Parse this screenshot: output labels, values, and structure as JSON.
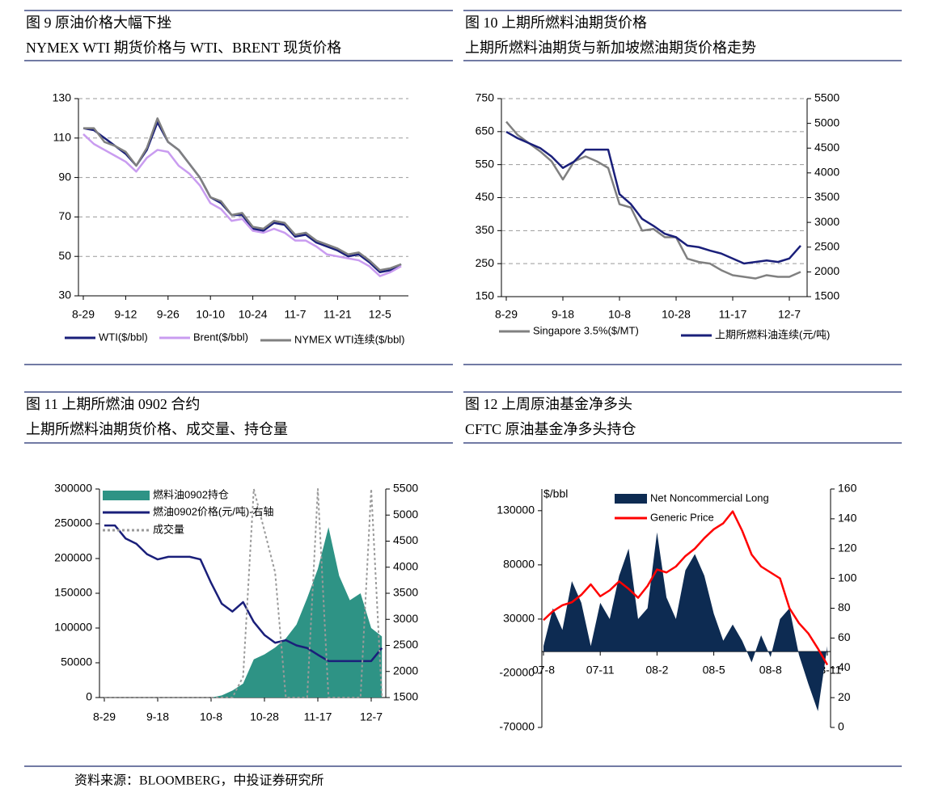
{
  "chart_data": [
    {
      "type": "line",
      "title": "图 9  原油价格大幅下挫",
      "subtitle": "NYMEX WTI 期货价格与 WTI、BRENT 现货价格",
      "categories": [
        "8-29",
        null,
        null,
        null,
        "9-12",
        null,
        null,
        null,
        "9-26",
        null,
        null,
        null,
        "10-10",
        null,
        null,
        null,
        "10-24",
        null,
        null,
        null,
        "11-7",
        null,
        null,
        null,
        "11-21",
        null,
        null,
        null,
        "12-5",
        null,
        null
      ],
      "ylim": [
        30,
        130
      ],
      "yticks": [
        30,
        50,
        70,
        90,
        110,
        130
      ],
      "grid": true,
      "legend": "bottom",
      "series": [
        {
          "name": "WTI($/bbl)",
          "color": "#1a1f7a",
          "values": [
            115,
            114,
            110,
            106,
            102,
            96,
            104,
            118,
            108,
            104,
            97,
            90,
            80,
            77,
            71,
            71,
            64,
            63,
            67,
            66,
            60,
            61,
            57,
            55,
            53,
            50,
            51,
            47,
            42,
            43,
            46
          ]
        },
        {
          "name": "Brent($/bbl)",
          "color": "#c99cf0",
          "values": [
            112,
            107,
            104,
            101,
            98,
            93,
            100,
            104,
            103,
            96,
            92,
            86,
            77,
            74,
            68,
            69,
            63,
            62,
            64,
            62,
            58,
            58,
            55,
            51,
            50,
            49,
            48,
            45,
            40,
            42,
            45
          ]
        },
        {
          "name": "NYMEX WTI连续($/bbl)",
          "color": "#808080",
          "values": [
            115,
            115,
            108,
            106,
            103,
            96,
            105,
            120,
            108,
            104,
            97,
            90,
            80,
            78,
            71,
            72,
            65,
            64,
            68,
            67,
            61,
            62,
            58,
            56,
            54,
            51,
            52,
            48,
            43,
            44,
            46
          ]
        }
      ]
    },
    {
      "type": "line",
      "title": "图 10  上期所燃料油期货价格",
      "subtitle": "上期所燃料油期货与新加坡燃油期货价格走势",
      "categories": [
        "8-29",
        null,
        null,
        null,
        null,
        "9-18",
        null,
        null,
        null,
        null,
        "10-8",
        null,
        null,
        null,
        null,
        "10-28",
        null,
        null,
        null,
        null,
        "11-17",
        null,
        null,
        null,
        null,
        "12-7",
        null
      ],
      "ylim": [
        150,
        750
      ],
      "yticks": [
        150,
        250,
        350,
        450,
        550,
        650,
        750
      ],
      "y2lim": [
        1500,
        5500
      ],
      "y2ticks": [
        1500,
        2000,
        2500,
        3000,
        3500,
        4000,
        4500,
        5000,
        5500
      ],
      "grid": true,
      "legend": "bottom",
      "series": [
        {
          "name": "Singapore 3.5%($/MT)",
          "color": "#808080",
          "values": [
            680,
            640,
            615,
            590,
            560,
            505,
            560,
            575,
            560,
            540,
            430,
            420,
            350,
            355,
            330,
            330,
            265,
            255,
            250,
            230,
            215,
            210,
            205,
            215,
            210,
            210,
            225
          ]
        },
        {
          "name": "上期所燃料油连续(元/吨)",
          "color": "#1a1f7a",
          "axis": "y2",
          "values": [
            4830,
            4700,
            4600,
            4500,
            4330,
            4100,
            4230,
            4470,
            4470,
            4470,
            3570,
            3370,
            3070,
            2930,
            2770,
            2700,
            2530,
            2500,
            2430,
            2370,
            2270,
            2170,
            2200,
            2230,
            2200,
            2270,
            2530
          ]
        }
      ]
    },
    {
      "type": "combo",
      "title": "图 11  上期所燃油 0902 合约",
      "subtitle": "上期所燃料油期货价格、成交量、持仓量",
      "categories": [
        "8-29",
        null,
        null,
        null,
        null,
        "9-18",
        null,
        null,
        null,
        null,
        "10-8",
        null,
        null,
        null,
        null,
        "10-28",
        null,
        null,
        null,
        null,
        "11-17",
        null,
        null,
        null,
        null,
        "12-7",
        null
      ],
      "ylim": [
        0,
        300000
      ],
      "yticks": [
        0,
        50000,
        100000,
        150000,
        200000,
        250000,
        300000
      ],
      "y2lim": [
        1500,
        5500
      ],
      "y2ticks": [
        1500,
        2000,
        2500,
        3000,
        3500,
        4000,
        4500,
        5000,
        5500
      ],
      "legend": "top-left",
      "series": [
        {
          "name": "燃料油0902持仓",
          "type": "area",
          "color": "#2e9385",
          "values": [
            0,
            0,
            0,
            0,
            0,
            0,
            0,
            0,
            0,
            0,
            0,
            3000,
            10000,
            20000,
            55000,
            62000,
            72000,
            85000,
            105000,
            143000,
            185000,
            245000,
            175000,
            140000,
            150000,
            100000,
            88000
          ]
        },
        {
          "name": "燃油0902价格(元/吨)-右轴",
          "color": "#1a1f7a",
          "axis": "y2",
          "values": [
            4800,
            4800,
            4550,
            4450,
            4250,
            4150,
            4200,
            4200,
            4200,
            4150,
            3700,
            3300,
            3150,
            3330,
            2950,
            2700,
            2550,
            2600,
            2500,
            2450,
            2320,
            2200,
            2200,
            2200,
            2200,
            2200,
            2450
          ]
        },
        {
          "name": "成交量",
          "color": "#9a9a9a",
          "style": "dashed",
          "values": [
            0,
            0,
            0,
            0,
            0,
            0,
            0,
            0,
            0,
            0,
            0,
            0,
            0,
            30000,
            300000,
            240000,
            180000,
            0,
            0,
            0,
            300000,
            0,
            0,
            0,
            0,
            300000,
            0
          ]
        }
      ]
    },
    {
      "type": "combo",
      "title": "图 12  上周原油基金净多头",
      "subtitle": "CFTC  原油基金净多头持仓",
      "y_label": "$/bbl",
      "categories": [
        "07-8",
        null,
        null,
        null,
        null,
        null,
        "07-11",
        null,
        null,
        null,
        null,
        null,
        "08-2",
        null,
        null,
        null,
        null,
        null,
        "08-5",
        null,
        null,
        null,
        null,
        null,
        "08-8",
        null,
        null,
        null,
        null,
        null,
        "08-11"
      ],
      "ylim": [
        -70000,
        150000
      ],
      "yticks": [
        -70000,
        -20000,
        30000,
        80000,
        130000
      ],
      "y2lim": [
        0,
        160
      ],
      "y2ticks": [
        0,
        20,
        40,
        60,
        80,
        100,
        120,
        140,
        160
      ],
      "legend": "top",
      "series": [
        {
          "name": "Net Noncommercial Long",
          "type": "area",
          "color": "#0d2b52",
          "values": [
            5000,
            40000,
            20000,
            65000,
            45000,
            5000,
            45000,
            30000,
            70000,
            95000,
            30000,
            40000,
            110000,
            50000,
            30000,
            75000,
            90000,
            70000,
            35000,
            10000,
            25000,
            10000,
            -10000,
            15000,
            -5000,
            30000,
            40000,
            -3000,
            -30000,
            -55000,
            5000
          ]
        },
        {
          "name": "Generic Price",
          "color": "#ff0000",
          "axis": "y2",
          "values": [
            72,
            78,
            82,
            84,
            89,
            96,
            88,
            92,
            98,
            93,
            87,
            95,
            106,
            104,
            108,
            115,
            120,
            127,
            133,
            137,
            145,
            132,
            116,
            108,
            104,
            100,
            80,
            70,
            63,
            53,
            42
          ]
        }
      ]
    }
  ],
  "source": "资料来源：BLOOMBERG，中投证券研究所"
}
